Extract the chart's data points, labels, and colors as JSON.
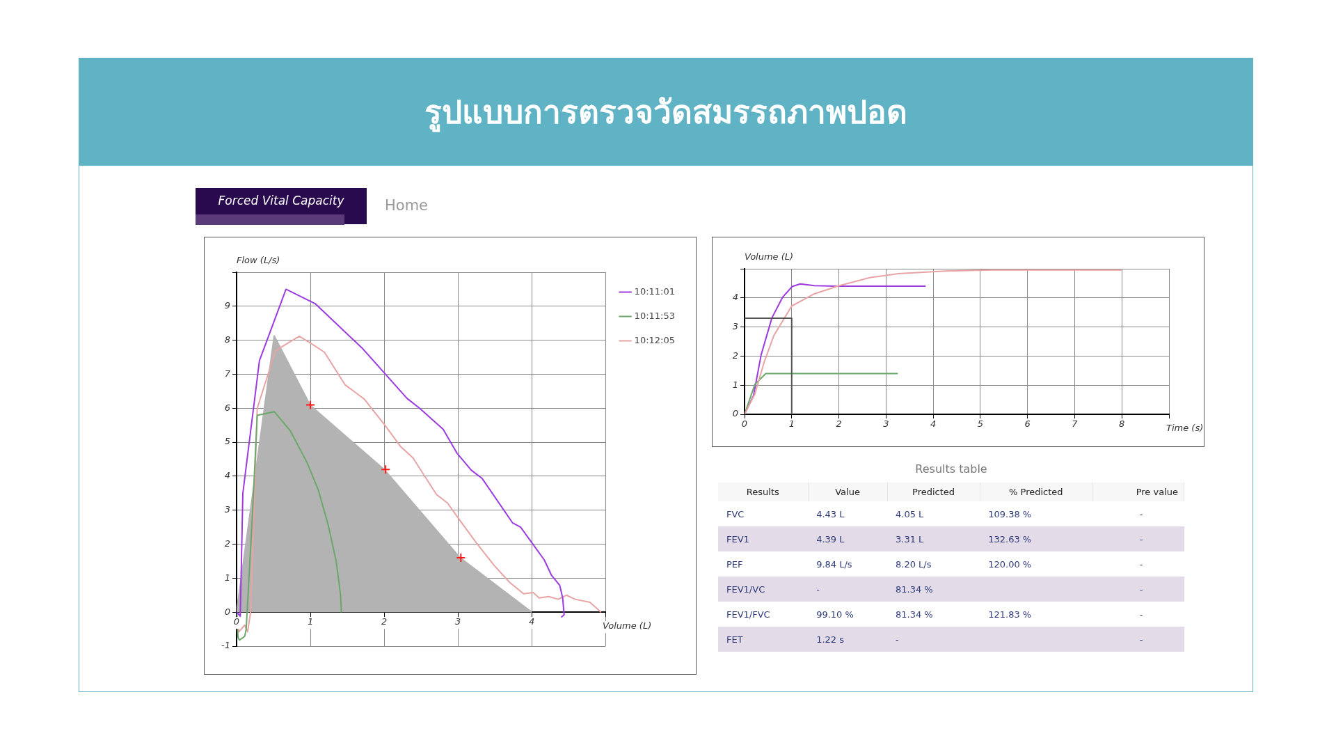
{
  "chart_data": [
    {
      "type": "line",
      "title": "รูปแบบการตรวจวัดสมรรถภาพปอด",
      "subtitle": "Forced Vital Capacity",
      "annotations": [
        "Home"
      ],
      "xlabel": "Volume (L)",
      "ylabel": "Flow (L/s)",
      "xlim": [
        0,
        5
      ],
      "ylim": [
        -1,
        10
      ],
      "xticks": [
        0,
        1,
        2,
        3,
        4,
        {
          "value": 5,
          "label": null
        }
      ],
      "yticks": [
        -1,
        0,
        1,
        2,
        3,
        4,
        5,
        6,
        7,
        8,
        9,
        {
          "value": 10,
          "label": null
        }
      ],
      "grid": true,
      "legend": "top right",
      "marker": "none",
      "series": [
        {
          "type": "area",
          "color": "#b3b3b3",
          "x": [
            0,
            0.51,
            1.0,
            2.0,
            3.03,
            4.0
          ],
          "values": [
            0,
            8.13,
            6.08,
            4.2,
            1.6,
            0
          ]
        },
        {
          "name": "10:11:01",
          "color": "#9b3be0",
          "x": [
            0,
            0.05,
            0.085,
            0.31,
            0.67,
            1.07,
            1.71,
            2.31,
            2.48,
            2.8,
            2.99,
            3.18,
            3.33,
            3.74,
            3.85,
            4.17,
            4.27,
            4.38,
            4.42,
            4.44,
            4.4
          ],
          "values": [
            0,
            -0.12,
            3.5,
            7.4,
            9.5,
            9.07,
            7.75,
            6.29,
            6.0,
            5.38,
            4.67,
            4.18,
            3.93,
            2.63,
            2.5,
            1.54,
            1.08,
            0.79,
            0.42,
            -0.08,
            -0.15
          ]
        },
        {
          "name": "10:11:53",
          "color": "#6aa86a",
          "x": [
            0,
            0.02,
            0.04,
            0.11,
            0.13,
            0.21,
            0.28,
            0.51,
            0.73,
            0.96,
            1.11,
            1.24,
            1.35,
            1.41,
            1.42
          ],
          "values": [
            0,
            -0.75,
            -0.82,
            -0.71,
            -0.5,
            2.67,
            5.79,
            5.9,
            5.33,
            4.38,
            3.58,
            2.58,
            1.5,
            0.5,
            0
          ]
        },
        {
          "name": "10:12:05",
          "color": "#e8a4a4",
          "x": [
            0,
            0.03,
            0.11,
            0.15,
            0.19,
            0.28,
            0.53,
            0.85,
            1.0,
            1.19,
            1.47,
            1.73,
            2.01,
            2.22,
            2.39,
            2.71,
            2.86,
            3.01,
            3.25,
            3.49,
            3.7,
            3.89,
            4.02,
            4.1,
            4.23,
            4.36,
            4.47,
            4.59,
            4.79,
            4.94
          ],
          "values": [
            0,
            -0.58,
            -0.38,
            -0.58,
            0,
            6.0,
            7.7,
            8.12,
            7.92,
            7.65,
            6.69,
            6.27,
            5.5,
            4.88,
            4.54,
            3.46,
            3.21,
            2.75,
            2.04,
            1.38,
            0.88,
            0.54,
            0.58,
            0.42,
            0.46,
            0.38,
            0.5,
            0.38,
            0.29,
            0
          ]
        },
        {
          "type": "scatter",
          "marker": "cross",
          "color": "#ff1a1a",
          "x": [
            1.0,
            2.02,
            3.04
          ],
          "values": [
            6.1,
            4.2,
            1.6
          ]
        }
      ]
    },
    {
      "type": "line",
      "xlabel": "Time (s)",
      "ylabel": "Volume (L)",
      "xlim": [
        0,
        9
      ],
      "ylim": [
        0,
        5
      ],
      "xticks": [
        0,
        1,
        2,
        3,
        4,
        5,
        6,
        7,
        8,
        {
          "value": 9,
          "label": null
        }
      ],
      "yticks": [
        0,
        1,
        2,
        3,
        4,
        {
          "value": 5,
          "label": null
        }
      ],
      "grid": true,
      "marker": "none",
      "series": [
        {
          "color": "#555555",
          "x": [
            0,
            1,
            1
          ],
          "values": [
            3.3,
            3.3,
            0
          ]
        },
        {
          "color": "#e8a4a4",
          "x": [
            0,
            0.22,
            0.42,
            0.62,
            1.0,
            1.48,
            2.01,
            2.67,
            3.26,
            4.26,
            5.25,
            7.99
          ],
          "values": [
            0,
            0.7,
            1.81,
            2.7,
            3.72,
            4.14,
            4.42,
            4.7,
            4.83,
            4.92,
            4.96,
            4.96
          ]
        },
        {
          "color": "#6aa86a",
          "x": [
            0,
            0.22,
            0.45,
            3.25
          ],
          "values": [
            0,
            1.03,
            1.4,
            1.4
          ]
        },
        {
          "color": "#9b3be0",
          "x": [
            0,
            0.19,
            0.35,
            0.58,
            0.81,
            1.01,
            1.18,
            1.48,
            1.94,
            3.84
          ],
          "values": [
            0,
            0.64,
            2.03,
            3.31,
            4.03,
            4.39,
            4.48,
            4.42,
            4.4,
            4.4
          ]
        }
      ]
    },
    {
      "type": "other",
      "title": "Results table",
      "categories": [
        "Results",
        "Value",
        "Predicted",
        "% Predicted",
        "Pre value"
      ],
      "y_categories": [
        "FVC",
        "FEV1",
        "PEF",
        "FEV1/VC",
        "FEV1/FVC",
        "FET"
      ],
      "cell_labels": [
        [
          "4.43 L",
          "4.05 L",
          "109.38 %",
          "-"
        ],
        [
          "4.39 L",
          "3.31 L",
          "132.63 %",
          "-"
        ],
        [
          "9.84 L/s",
          "8.20 L/s",
          "120.00 %",
          "-"
        ],
        [
          "-",
          "81.34 %",
          null,
          "-"
        ],
        [
          "99.10 %",
          "81.34 %",
          "121.83 %",
          "-"
        ],
        [
          "1.22 s",
          "-",
          null,
          "-"
        ]
      ]
    }
  ]
}
